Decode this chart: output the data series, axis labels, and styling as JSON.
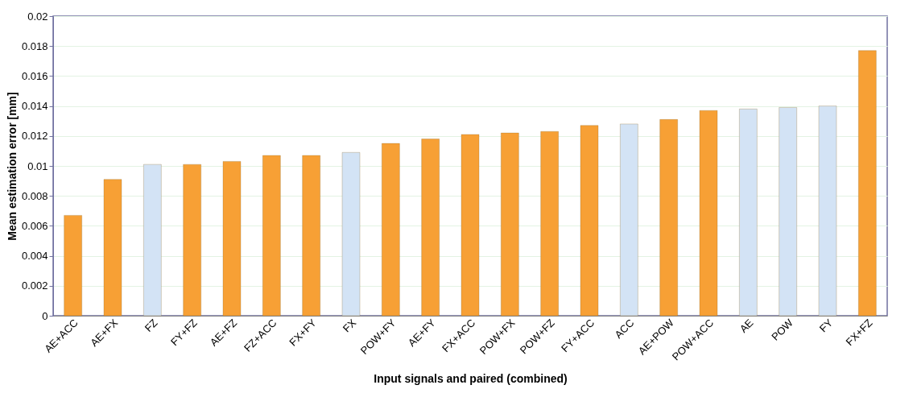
{
  "chart_data": {
    "type": "bar",
    "xlabel": "Input signals and paired (combined)",
    "ylabel": "Mean estimation error [mm]",
    "categories": [
      "AE+ACC",
      "AE+FX",
      "FZ",
      "FY+FZ",
      "AE+FZ",
      "FZ+ACC",
      "FX+FY",
      "FX",
      "POW+FY",
      "AE+FY",
      "FX+ACC",
      "POW+FX",
      "POW+FZ",
      "FY+ACC",
      "ACC",
      "AE+POW",
      "POW+ACC",
      "AE",
      "POW",
      "FY",
      "FX+FZ"
    ],
    "values": [
      0.0067,
      0.0091,
      0.0101,
      0.0101,
      0.0103,
      0.0107,
      0.0107,
      0.0109,
      0.0115,
      0.0118,
      0.0121,
      0.0122,
      0.0123,
      0.0127,
      0.0128,
      0.0131,
      0.0137,
      0.0138,
      0.0139,
      0.014,
      0.0177
    ],
    "colors": [
      "#f7a035",
      "#f7a035",
      "#d3e3f5",
      "#f7a035",
      "#f7a035",
      "#f7a035",
      "#f7a035",
      "#d3e3f5",
      "#f7a035",
      "#f7a035",
      "#f7a035",
      "#f7a035",
      "#f7a035",
      "#f7a035",
      "#d3e3f5",
      "#f7a035",
      "#f7a035",
      "#d3e3f5",
      "#d3e3f5",
      "#d3e3f5",
      "#f7a035"
    ],
    "ylim": [
      0,
      0.02
    ],
    "yticks": [
      0,
      0.002,
      0.004,
      0.006,
      0.008,
      0.01,
      0.012,
      0.014,
      0.016,
      0.018,
      0.02
    ],
    "grid": "y"
  }
}
